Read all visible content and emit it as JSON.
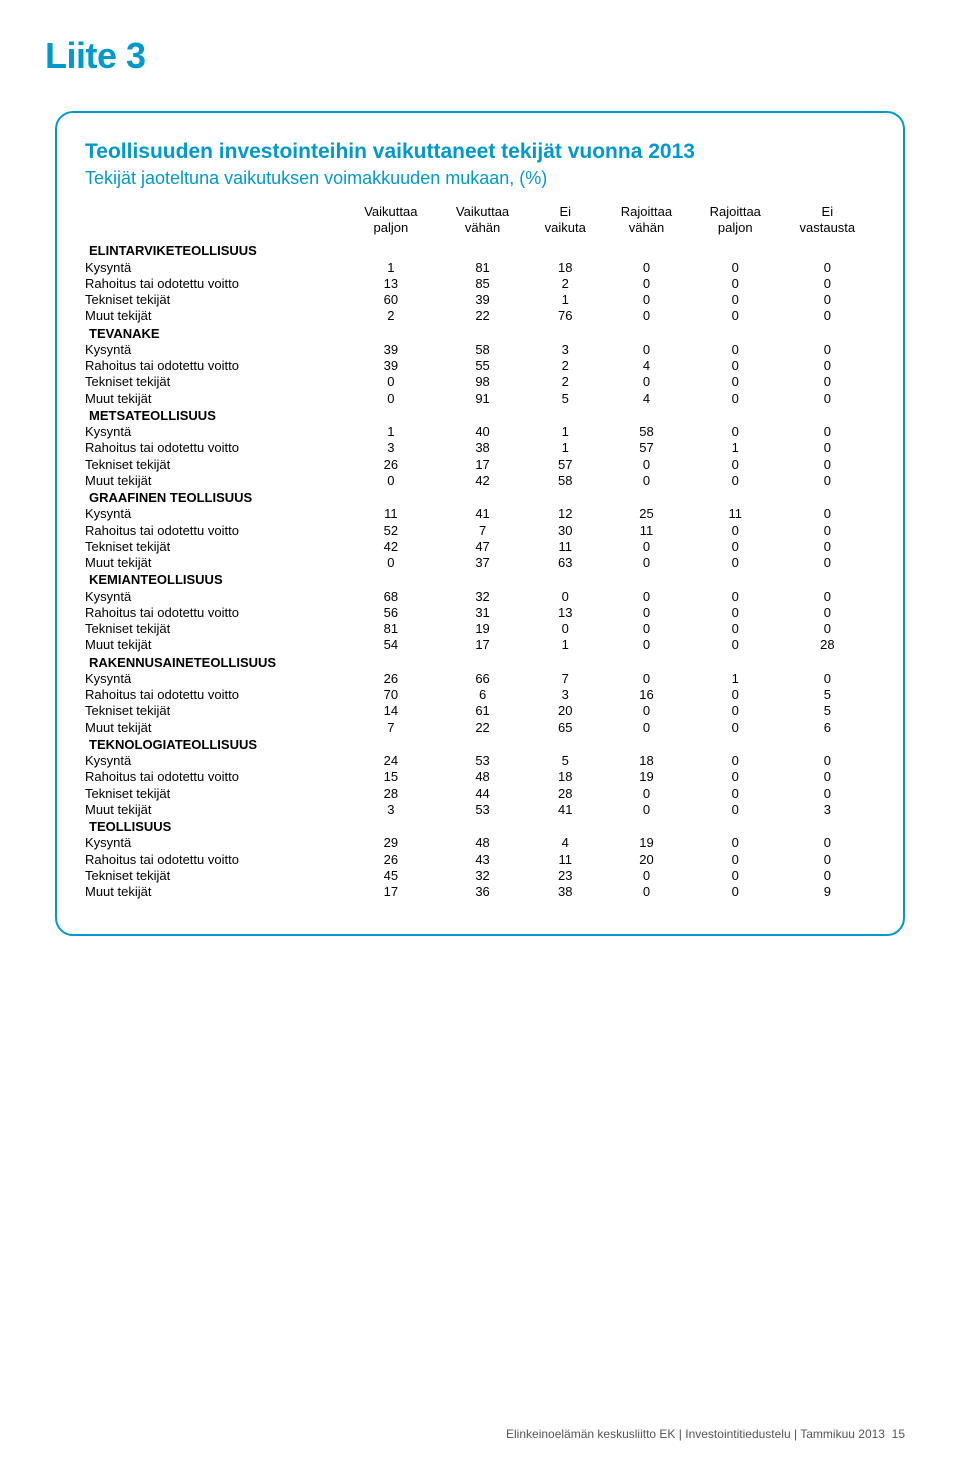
{
  "page_title": "Liite 3",
  "box_title": "Teollisuuden investointeihin vaikuttaneet tekijät vuonna 2013",
  "box_subtitle": "Tekijät jaoteltuna vaikutuksen voimakkuuden mukaan, (%)",
  "col_headers": [
    {
      "l1": "Vaikuttaa",
      "l2": "paljon"
    },
    {
      "l1": "Vaikuttaa",
      "l2": "vähän"
    },
    {
      "l1": "Ei",
      "l2": "vaikuta"
    },
    {
      "l1": "Rajoittaa",
      "l2": "vähän"
    },
    {
      "l1": "Rajoittaa",
      "l2": "paljon"
    },
    {
      "l1": "Ei",
      "l2": "vastausta"
    }
  ],
  "row_labels": {
    "kys": "Kysyntä",
    "rah": "Rahoitus tai odotettu voitto",
    "tek": "Tekniset tekijät",
    "mut": "Muut tekijät"
  },
  "sections": [
    {
      "name": "ELINTARVIKETEOLLISUUS",
      "rows": [
        {
          "k": "kys",
          "v": [
            1,
            81,
            18,
            0,
            0,
            0
          ]
        },
        {
          "k": "rah",
          "v": [
            13,
            85,
            2,
            0,
            0,
            0
          ]
        },
        {
          "k": "tek",
          "v": [
            60,
            39,
            1,
            0,
            0,
            0
          ]
        },
        {
          "k": "mut",
          "v": [
            2,
            22,
            76,
            0,
            0,
            0
          ]
        }
      ]
    },
    {
      "name": "TEVANAKE",
      "rows": [
        {
          "k": "kys",
          "v": [
            39,
            58,
            3,
            0,
            0,
            0
          ]
        },
        {
          "k": "rah",
          "v": [
            39,
            55,
            2,
            4,
            0,
            0
          ]
        },
        {
          "k": "tek",
          "v": [
            0,
            98,
            2,
            0,
            0,
            0
          ]
        },
        {
          "k": "mut",
          "v": [
            0,
            91,
            5,
            4,
            0,
            0
          ]
        }
      ]
    },
    {
      "name": "METSATEOLLISUUS",
      "rows": [
        {
          "k": "kys",
          "v": [
            1,
            40,
            1,
            58,
            0,
            0
          ]
        },
        {
          "k": "rah",
          "v": [
            3,
            38,
            1,
            57,
            1,
            0
          ]
        },
        {
          "k": "tek",
          "v": [
            26,
            17,
            57,
            0,
            0,
            0
          ]
        },
        {
          "k": "mut",
          "v": [
            0,
            42,
            58,
            0,
            0,
            0
          ]
        }
      ]
    },
    {
      "name": "GRAAFINEN TEOLLISUUS",
      "rows": [
        {
          "k": "kys",
          "v": [
            11,
            41,
            12,
            25,
            11,
            0
          ]
        },
        {
          "k": "rah",
          "v": [
            52,
            7,
            30,
            11,
            0,
            0
          ]
        },
        {
          "k": "tek",
          "v": [
            42,
            47,
            11,
            0,
            0,
            0
          ]
        },
        {
          "k": "mut",
          "v": [
            0,
            37,
            63,
            0,
            0,
            0
          ]
        }
      ]
    },
    {
      "name": "KEMIANTEOLLISUUS",
      "rows": [
        {
          "k": "kys",
          "v": [
            68,
            32,
            0,
            0,
            0,
            0
          ]
        },
        {
          "k": "rah",
          "v": [
            56,
            31,
            13,
            0,
            0,
            0
          ]
        },
        {
          "k": "tek",
          "v": [
            81,
            19,
            0,
            0,
            0,
            0
          ]
        },
        {
          "k": "mut",
          "v": [
            54,
            17,
            1,
            0,
            0,
            28
          ]
        }
      ]
    },
    {
      "name": "RAKENNUSAINETEOLLISUUS",
      "rows": [
        {
          "k": "kys",
          "v": [
            26,
            66,
            7,
            0,
            1,
            0
          ]
        },
        {
          "k": "rah",
          "v": [
            70,
            6,
            3,
            16,
            0,
            5
          ]
        },
        {
          "k": "tek",
          "v": [
            14,
            61,
            20,
            0,
            0,
            5
          ]
        },
        {
          "k": "mut",
          "v": [
            7,
            22,
            65,
            0,
            0,
            6
          ]
        }
      ]
    },
    {
      "name": "TEKNOLOGIATEOLLISUUS",
      "rows": [
        {
          "k": "kys",
          "v": [
            24,
            53,
            5,
            18,
            0,
            0
          ]
        },
        {
          "k": "rah",
          "v": [
            15,
            48,
            18,
            19,
            0,
            0
          ]
        },
        {
          "k": "tek",
          "v": [
            28,
            44,
            28,
            0,
            0,
            0
          ]
        },
        {
          "k": "mut",
          "v": [
            3,
            53,
            41,
            0,
            0,
            3
          ]
        }
      ]
    },
    {
      "name": "TEOLLISUUS",
      "rows": [
        {
          "k": "kys",
          "v": [
            29,
            48,
            4,
            19,
            0,
            0
          ]
        },
        {
          "k": "rah",
          "v": [
            26,
            43,
            11,
            20,
            0,
            0
          ]
        },
        {
          "k": "tek",
          "v": [
            45,
            32,
            23,
            0,
            0,
            0
          ]
        },
        {
          "k": "mut",
          "v": [
            17,
            36,
            38,
            0,
            0,
            9
          ]
        }
      ]
    }
  ],
  "footer": {
    "org": "Elinkeinoelämän keskusliitto EK",
    "sep1": "|",
    "doc": "Investointitiedustelu",
    "sep2": "|",
    "date": "Tammikuu 2013",
    "page": "15"
  }
}
